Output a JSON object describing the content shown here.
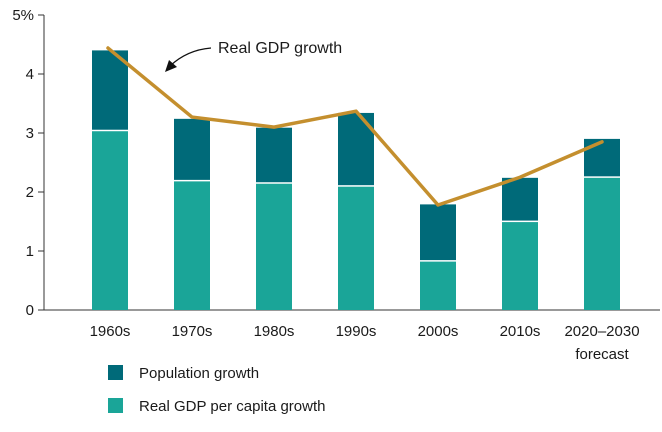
{
  "chart_data": {
    "type": "bar",
    "stacked": true,
    "categories": [
      "1960s",
      "1970s",
      "1980s",
      "1990s",
      "2000s",
      "2010s",
      "2020–2030"
    ],
    "category_sublabels": [
      "",
      "",
      "",
      "",
      "",
      "",
      "forecast"
    ],
    "ylim": [
      0,
      5
    ],
    "yticks": [
      0,
      1,
      2,
      3,
      4,
      5
    ],
    "ytick_labels": [
      "0",
      "1",
      "2",
      "3",
      "4",
      "5%"
    ],
    "series": [
      {
        "name": "Real GDP per capita growth",
        "values": [
          3.03,
          2.18,
          2.14,
          2.09,
          0.82,
          1.49,
          2.24
        ],
        "color": "#1aa598"
      },
      {
        "name": "Population growth",
        "values": [
          1.37,
          1.06,
          0.95,
          1.25,
          0.97,
          0.75,
          0.66
        ],
        "color": "#006a79"
      }
    ],
    "line": {
      "name": "Real GDP growth",
      "values": [
        4.44,
        3.27,
        3.1,
        3.37,
        1.78,
        2.25,
        2.85
      ],
      "color": "#c48f2e"
    },
    "annotation": "Real GDP growth",
    "legend": [
      {
        "label": "Population growth",
        "color": "#006a79"
      },
      {
        "label": "Real GDP per capita growth",
        "color": "#1aa598"
      }
    ],
    "legend_position": "bottom-left",
    "grid": false
  }
}
